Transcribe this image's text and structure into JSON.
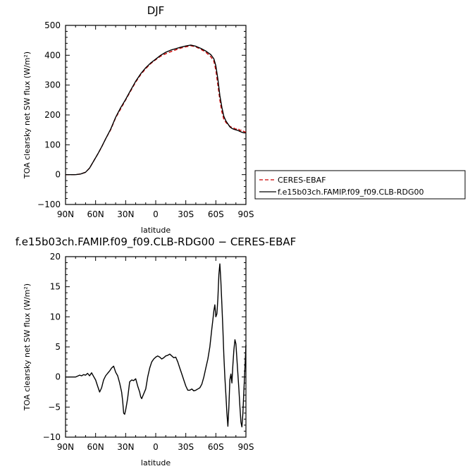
{
  "chart_data": [
    {
      "type": "line",
      "title": "DJF",
      "xlabel": "latitude",
      "ylabel": "TOA clearsky net SW flux (W/m²)",
      "xlim": [
        90,
        -90
      ],
      "ylim": [
        -100,
        500
      ],
      "x_ticks": [
        90,
        60,
        30,
        0,
        -30,
        -60,
        -90
      ],
      "x_tick_labels": [
        "90N",
        "60N",
        "30N",
        "0",
        "30S",
        "60S",
        "90S"
      ],
      "y_ticks": [
        -100,
        0,
        100,
        200,
        300,
        400,
        500
      ],
      "y_tick_labels": [
        "−100",
        "0",
        "100",
        "200",
        "300",
        "400",
        "500"
      ],
      "legend_position": "right",
      "series": [
        {
          "name": "CERES-EBAF",
          "color": "#cc0000",
          "dash": "dashed",
          "x": [
            90,
            80,
            75,
            70,
            66,
            62,
            58,
            54,
            50,
            45,
            40,
            35,
            30,
            25,
            20,
            15,
            10,
            5,
            0,
            -5,
            -10,
            -15,
            -20,
            -25,
            -30,
            -35,
            -40,
            -45,
            -50,
            -55,
            -58,
            -60,
            -62,
            -64,
            -66,
            -68,
            -70,
            -72,
            -74,
            -76,
            -78,
            -80,
            -82,
            -84,
            -86,
            -88,
            -90
          ],
          "y": [
            0,
            0,
            2,
            8,
            22,
            45,
            68,
            92,
            120,
            150,
            190,
            220,
            250,
            280,
            310,
            335,
            355,
            372,
            385,
            397,
            405,
            412,
            418,
            424,
            428,
            432,
            428,
            420,
            410,
            395,
            380,
            350,
            300,
            250,
            210,
            185,
            175,
            168,
            162,
            158,
            156,
            152,
            155,
            148,
            150,
            144,
            142
          ]
        },
        {
          "name": "f.e15b03ch.FAMIP.f09_f09.CLB-RDG00",
          "color": "#000000",
          "dash": "solid",
          "x": [
            90,
            80,
            75,
            70,
            66,
            62,
            58,
            54,
            50,
            45,
            40,
            35,
            30,
            25,
            20,
            15,
            10,
            5,
            0,
            -5,
            -10,
            -15,
            -20,
            -25,
            -30,
            -35,
            -40,
            -45,
            -50,
            -55,
            -58,
            -60,
            -62,
            -64,
            -66,
            -68,
            -70,
            -72,
            -74,
            -76,
            -78,
            -80,
            -82,
            -84,
            -86,
            -88,
            -90
          ],
          "y": [
            0,
            0,
            2,
            8,
            22,
            45,
            68,
            93,
            120,
            152,
            192,
            224,
            252,
            283,
            313,
            338,
            358,
            374,
            387,
            400,
            410,
            417,
            422,
            427,
            431,
            434,
            430,
            423,
            414,
            402,
            388,
            365,
            320,
            265,
            225,
            195,
            180,
            170,
            160,
            155,
            152,
            150,
            148,
            145,
            142,
            140,
            140
          ]
        }
      ]
    },
    {
      "type": "line",
      "title": "f.e15b03ch.FAMIP.f09_f09.CLB-RDG00 − CERES-EBAF",
      "xlabel": "latitude",
      "ylabel": "TOA clearsky net SW flux (W/m²)",
      "xlim": [
        90,
        -90
      ],
      "ylim": [
        -10,
        20
      ],
      "x_ticks": [
        90,
        60,
        30,
        0,
        -30,
        -60,
        -90
      ],
      "x_tick_labels": [
        "90N",
        "60N",
        "30N",
        "0",
        "30S",
        "60S",
        "90S"
      ],
      "y_ticks": [
        -10,
        -5,
        0,
        5,
        10,
        15,
        20
      ],
      "y_tick_labels": [
        "−10",
        "−5",
        "0",
        "5",
        "10",
        "15",
        "20"
      ],
      "series": [
        {
          "color": "#000000",
          "dash": "solid",
          "x": [
            90,
            80,
            76,
            74,
            72,
            70,
            68,
            66,
            64,
            62,
            60,
            58,
            56,
            54,
            52,
            50,
            48,
            46,
            44,
            42,
            40,
            38,
            36,
            34,
            33,
            32,
            31,
            30,
            29,
            28,
            26,
            24,
            22,
            20,
            18,
            16,
            15,
            14,
            13,
            12,
            10,
            8,
            6,
            4,
            2,
            0,
            -2,
            -4,
            -6,
            -8,
            -10,
            -12,
            -14,
            -16,
            -18,
            -20,
            -22,
            -24,
            -26,
            -28,
            -30,
            -32,
            -34,
            -36,
            -38,
            -40,
            -42,
            -44,
            -46,
            -48,
            -50,
            -52,
            -54,
            -56,
            -57,
            -58,
            -59,
            -60,
            -61,
            -62,
            -63,
            -64,
            -65,
            -66,
            -67,
            -68,
            -69,
            -70,
            -71,
            -72,
            -73,
            -74,
            -75,
            -76,
            -77,
            -78,
            -79,
            -80,
            -81,
            -82,
            -83,
            -84,
            -85,
            -86,
            -87,
            -88,
            -89,
            -90
          ],
          "y": [
            0,
            0,
            0.3,
            0.2,
            0.4,
            0.3,
            0.6,
            0.2,
            0.7,
            0.1,
            -0.5,
            -1.5,
            -2.5,
            -1.8,
            -0.5,
            0.2,
            0.6,
            1.0,
            1.5,
            1.8,
            0.8,
            0.2,
            -1.0,
            -2.5,
            -4.0,
            -6.0,
            -6.2,
            -5.5,
            -4.5,
            -3.5,
            -0.8,
            -0.5,
            -0.6,
            -0.3,
            -1.5,
            -2.5,
            -3.3,
            -3.6,
            -3.2,
            -2.8,
            -2.0,
            0.0,
            1.5,
            2.5,
            3.0,
            3.3,
            3.5,
            3.3,
            3.0,
            3.2,
            3.5,
            3.6,
            3.8,
            3.5,
            3.2,
            3.3,
            2.5,
            1.5,
            0.5,
            -0.5,
            -1.5,
            -2.2,
            -2.2,
            -2.0,
            -2.3,
            -2.2,
            -2.0,
            -1.8,
            -1.2,
            0.0,
            1.5,
            3.0,
            5.0,
            8.0,
            9.5,
            11.0,
            12.0,
            10.0,
            10.5,
            13.0,
            17.0,
            18.8,
            16.0,
            12.0,
            8.0,
            3.5,
            0.0,
            -3.0,
            -6.0,
            -8.2,
            -5.0,
            -0.5,
            0.5,
            -1.0,
            2.0,
            4.5,
            6.2,
            5.5,
            3.0,
            0.5,
            -2.0,
            -5.0,
            -7.5,
            -8.3,
            -6.0,
            -2.0,
            1.5,
            5.3
          ]
        }
      ]
    }
  ]
}
